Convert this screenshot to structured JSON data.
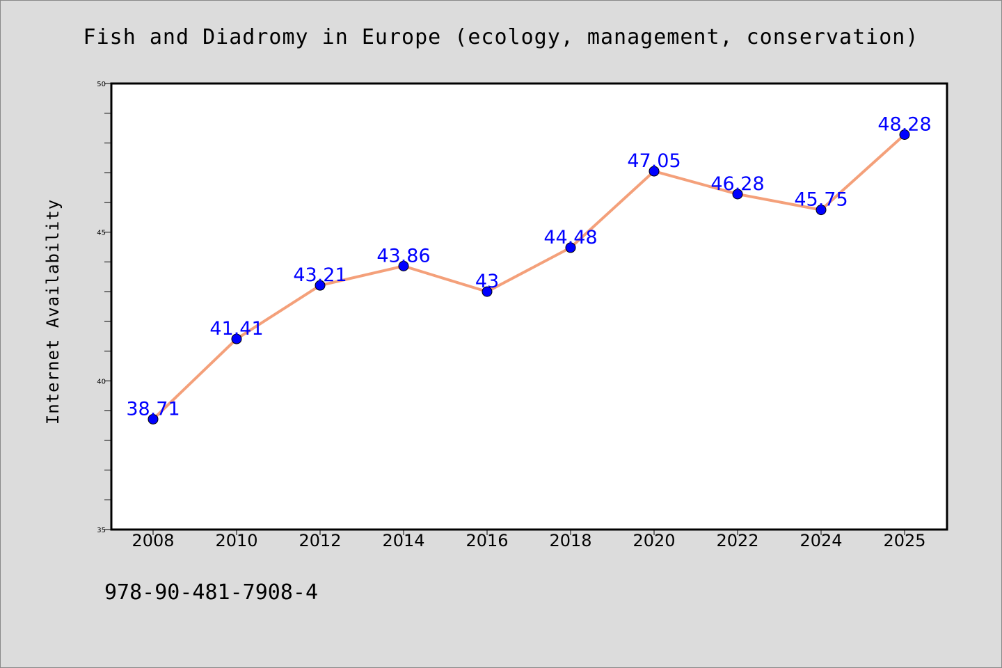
{
  "chart_data": {
    "type": "line",
    "title": "Fish and Diadromy in Europe (ecology, management, conservation)",
    "xlabel": "",
    "ylabel": "Internet Availability",
    "categories": [
      "2008",
      "2010",
      "2012",
      "2014",
      "2016",
      "2018",
      "2020",
      "2022",
      "2024",
      "2025"
    ],
    "values": [
      38.71,
      41.41,
      43.21,
      43.86,
      43,
      44.48,
      47.05,
      46.28,
      45.75,
      48.28
    ],
    "data_labels": [
      "38.71",
      "41.41",
      "43.21",
      "43.86",
      "43",
      "44.48",
      "47.05",
      "46.28",
      "45.75",
      "48.28"
    ],
    "ylim": [
      35,
      50
    ],
    "y_major_ticks": [
      35,
      40,
      45,
      50
    ],
    "y_minor_step": 1,
    "grid": false,
    "legend": "none",
    "colors": {
      "line": "#f4a07a",
      "marker": "#0000ff",
      "data_label": "#0000ff",
      "background": "#dcdcdc",
      "plot_background": "#ffffff"
    }
  },
  "footer_text": "978-90-481-7908-4"
}
